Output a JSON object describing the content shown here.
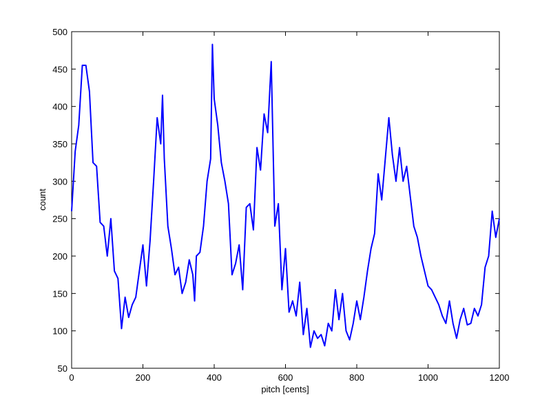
{
  "chart_data": {
    "type": "line",
    "xlabel": "pitch [cents]",
    "ylabel": "count",
    "xlim": [
      0,
      1200
    ],
    "ylim": [
      50,
      500
    ],
    "xticks": [
      0,
      200,
      400,
      600,
      800,
      1000,
      1200
    ],
    "yticks": [
      50,
      100,
      150,
      200,
      250,
      300,
      350,
      400,
      450,
      500
    ],
    "series": [
      {
        "color": "#0000ff",
        "x": [
          0,
          10,
          20,
          30,
          40,
          50,
          60,
          70,
          80,
          90,
          100,
          110,
          120,
          130,
          140,
          150,
          160,
          170,
          180,
          190,
          200,
          210,
          220,
          230,
          240,
          250,
          255,
          260,
          270,
          280,
          290,
          300,
          310,
          320,
          330,
          340,
          345,
          350,
          360,
          370,
          380,
          390,
          395,
          400,
          410,
          420,
          430,
          440,
          450,
          460,
          470,
          480,
          490,
          500,
          510,
          520,
          530,
          540,
          550,
          560,
          570,
          580,
          590,
          600,
          610,
          620,
          630,
          640,
          650,
          660,
          670,
          680,
          690,
          700,
          710,
          720,
          730,
          740,
          750,
          760,
          770,
          780,
          790,
          800,
          810,
          820,
          830,
          840,
          850,
          860,
          870,
          880,
          890,
          900,
          910,
          920,
          930,
          940,
          950,
          960,
          970,
          980,
          990,
          1000,
          1010,
          1020,
          1030,
          1040,
          1050,
          1060,
          1070,
          1080,
          1090,
          1100,
          1110,
          1120,
          1130,
          1140,
          1150,
          1160,
          1170,
          1180,
          1190,
          1200
        ],
        "values": [
          260,
          340,
          375,
          455,
          455,
          420,
          325,
          320,
          245,
          240,
          200,
          250,
          180,
          170,
          103,
          145,
          118,
          135,
          145,
          180,
          215,
          160,
          220,
          300,
          385,
          350,
          415,
          330,
          240,
          210,
          175,
          185,
          150,
          165,
          195,
          175,
          140,
          200,
          205,
          240,
          300,
          330,
          483,
          410,
          375,
          325,
          300,
          270,
          175,
          190,
          215,
          155,
          265,
          270,
          235,
          345,
          315,
          390,
          365,
          460,
          240,
          270,
          155,
          210,
          125,
          140,
          120,
          165,
          95,
          130,
          78,
          100,
          90,
          95,
          80,
          110,
          100,
          155,
          115,
          150,
          100,
          88,
          110,
          140,
          115,
          145,
          180,
          210,
          230,
          310,
          275,
          330,
          385,
          335,
          300,
          345,
          300,
          320,
          280,
          240,
          225,
          200,
          180,
          160,
          155,
          145,
          135,
          120,
          110,
          140,
          110,
          90,
          115,
          130,
          108,
          110,
          130,
          120,
          135,
          185,
          200,
          260,
          225,
          250
        ]
      }
    ]
  }
}
